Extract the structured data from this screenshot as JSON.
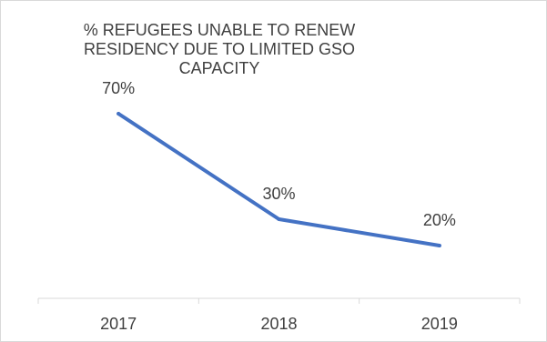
{
  "chart_data": {
    "type": "line",
    "title": "% REFUGEES UNABLE TO RENEW RESIDENCY DUE TO LIMITED GSO CAPACITY",
    "categories": [
      "2017",
      "2018",
      "2019"
    ],
    "series": [
      {
        "values": [
          70,
          30,
          20
        ],
        "labels": [
          "70%",
          "30%",
          "20%"
        ]
      }
    ],
    "ylim": [
      0,
      100
    ],
    "grid": false,
    "line_color": "#4472c4",
    "axis_color": "#d9d9d9",
    "text_color": "#404040"
  }
}
